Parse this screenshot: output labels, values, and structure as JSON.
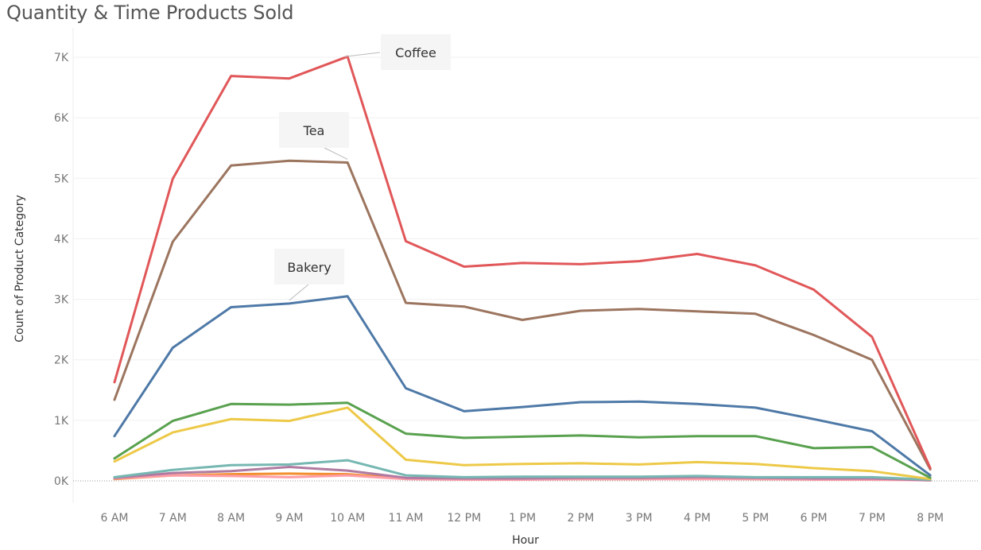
{
  "chart_data": {
    "type": "line",
    "title": "Quantity & Time Products Sold",
    "xlabel": "Hour",
    "ylabel": "Count of Product Category",
    "categories": [
      "6 AM",
      "7 AM",
      "8 AM",
      "9 AM",
      "10 AM",
      "11 AM",
      "12 PM",
      "1 PM",
      "2 PM",
      "3 PM",
      "4 PM",
      "5 PM",
      "6 PM",
      "7 PM",
      "8 PM"
    ],
    "ylim": [
      0,
      7400
    ],
    "yticks": [
      0,
      1000,
      2000,
      3000,
      4000,
      5000,
      6000,
      7000
    ],
    "ytick_labels": [
      "0K",
      "1K",
      "2K",
      "3K",
      "4K",
      "5K",
      "6K",
      "7K"
    ],
    "grid": true,
    "series": [
      {
        "color": "#e15759",
        "values": [
          1630,
          4990,
          6690,
          6650,
          7010,
          3960,
          3540,
          3600,
          3580,
          3630,
          3750,
          3560,
          3160,
          2380,
          210
        ]
      },
      {
        "color": "#9c755f",
        "values": [
          1340,
          3950,
          5210,
          5290,
          5260,
          2940,
          2880,
          2660,
          2810,
          2840,
          2800,
          2760,
          2410,
          2000,
          190
        ]
      },
      {
        "color": "#4e79a7",
        "values": [
          740,
          2200,
          2870,
          2930,
          3050,
          1530,
          1150,
          1220,
          1300,
          1310,
          1270,
          1210,
          1020,
          820,
          90
        ]
      },
      {
        "color": "#59a14f",
        "values": [
          370,
          990,
          1270,
          1260,
          1290,
          780,
          710,
          730,
          750,
          720,
          740,
          740,
          540,
          560,
          50
        ]
      },
      {
        "color": "#edc948",
        "values": [
          320,
          800,
          1020,
          990,
          1210,
          350,
          260,
          280,
          290,
          270,
          310,
          280,
          210,
          160,
          30
        ]
      },
      {
        "color": "#76b7b2",
        "values": [
          60,
          180,
          260,
          270,
          340,
          90,
          60,
          70,
          70,
          70,
          80,
          60,
          60,
          60,
          20
        ]
      },
      {
        "color": "#b07aa1",
        "values": [
          50,
          130,
          160,
          230,
          170,
          50,
          40,
          40,
          50,
          50,
          60,
          50,
          40,
          40,
          10
        ]
      },
      {
        "color": "#ff9da7",
        "values": [
          40,
          90,
          80,
          60,
          90,
          30,
          20,
          20,
          30,
          30,
          30,
          30,
          20,
          20,
          10
        ]
      },
      {
        "color": "#f28e2b",
        "values": [
          30,
          90,
          110,
          120,
          110,
          40,
          30,
          30,
          30,
          30,
          40,
          30,
          30,
          30,
          10
        ]
      }
    ],
    "annotations": [
      {
        "text": "Coffee",
        "series_index": 0,
        "point_index": 4
      },
      {
        "text": "Tea",
        "series_index": 1,
        "point_index": 4
      },
      {
        "text": "Bakery",
        "series_index": 2,
        "point_index": 3
      }
    ]
  }
}
